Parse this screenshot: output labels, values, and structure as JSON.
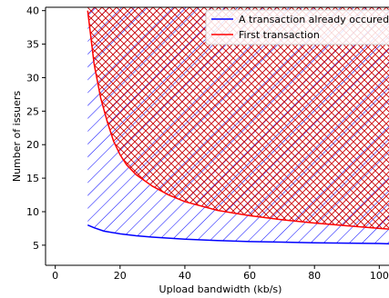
{
  "chart_data": {
    "type": "line",
    "title": "",
    "xlabel": "Upload bandwidth (kb/s)",
    "ylabel": "Number of issuers",
    "xlim": [
      -3,
      103
    ],
    "ylim": [
      2,
      40.5
    ],
    "x_ticks": [
      0,
      20,
      40,
      60,
      80,
      100
    ],
    "y_ticks": [
      5,
      10,
      15,
      20,
      25,
      30,
      35,
      40
    ],
    "grid": false,
    "legend_position": "top-right",
    "series": [
      {
        "name": "A transaction already occured",
        "color": "#0000ff",
        "hatch": "diagonal",
        "x": [
          10,
          12,
          15,
          20,
          25,
          30,
          40,
          50,
          60,
          70,
          80,
          90,
          100,
          103
        ],
        "y": [
          8.0,
          7.6,
          7.1,
          6.7,
          6.4,
          6.2,
          5.9,
          5.7,
          5.55,
          5.45,
          5.35,
          5.3,
          5.25,
          5.2
        ]
      },
      {
        "name": "First transaction",
        "color": "#ff0000",
        "hatch": "crosshatch",
        "x": [
          10,
          12,
          14,
          16,
          18,
          20,
          22,
          25,
          30,
          35,
          40,
          50,
          60,
          70,
          80,
          90,
          100,
          103
        ],
        "y": [
          40,
          32,
          27,
          23.5,
          20.5,
          18.5,
          17,
          15.5,
          13.8,
          12.5,
          11.5,
          10.2,
          9.4,
          8.8,
          8.3,
          7.9,
          7.5,
          7.4
        ]
      }
    ]
  }
}
